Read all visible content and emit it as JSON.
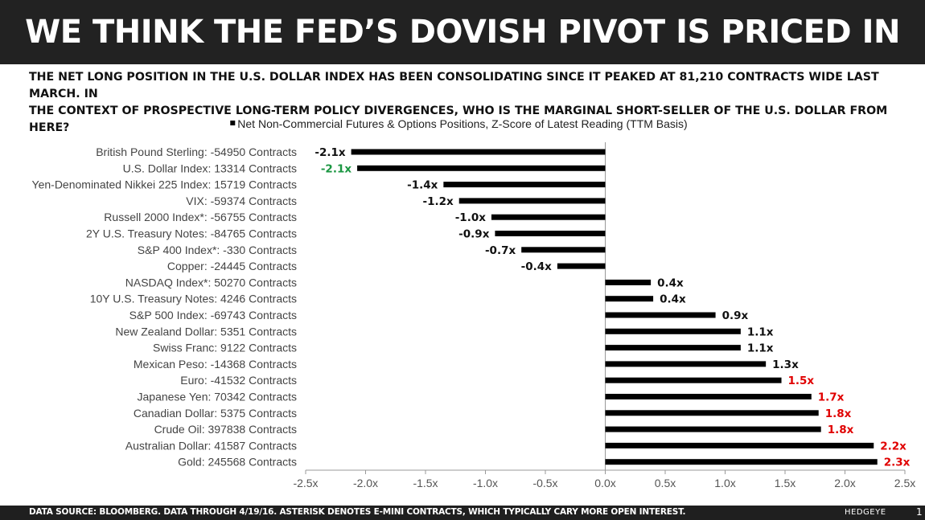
{
  "header": {
    "title": "WE THINK THE FED’S DOVISH PIVOT IS PRICED IN",
    "subtitle_line1": "THE NET LONG POSITION IN THE U.S. DOLLAR INDEX HAS BEEN CONSOLIDATING SINCE IT PEAKED AT 81,210 CONTRACTS WIDE LAST MARCH. IN",
    "subtitle_line2": "THE CONTEXT OF PROSPECTIVE LONG-TERM POLICY DIVERGENCES, WHO IS THE MARGINAL SHORT-SELLER OF THE U.S. DOLLAR FROM HERE?"
  },
  "footer": {
    "source": "DATA SOURCE: BLOOMBERG. DATA THROUGH 4/19/16. ASTERISK DENOTES E-MINI CONTRACTS, WHICH TYPICALLY CARY MORE OPEN INTEREST.",
    "brand": "HEDGEYE",
    "page": "1"
  },
  "colors": {
    "bar": "#000000",
    "label_default": "#111111",
    "label_highlight_red": "#e00000",
    "label_highlight_green": "#1a9641",
    "category_text": "#444444",
    "axis": "#999999"
  },
  "chart_data": {
    "type": "bar",
    "orientation": "horizontal",
    "legend": "Net Non-Commercial Futures & Options Positions, Z-Score of Latest Reading (TTM Basis)",
    "legend_position": "top-center",
    "categories": [
      "British Pound Sterling: -54950 Contracts",
      "U.S. Dollar Index: 13314 Contracts",
      "Yen-Denominated Nikkei 225 Index: 15719 Contracts",
      "VIX: -59374 Contracts",
      "Russell 2000 Index*: -56755 Contracts",
      "2Y U.S. Treasury Notes: -84765 Contracts",
      "S&P 400 Index*: -330 Contracts",
      "Copper: -24445 Contracts",
      "NASDAQ Index*: 50270 Contracts",
      "10Y U.S. Treasury Notes: 4246 Contracts",
      "S&P 500 Index: -69743 Contracts",
      "New Zealand Dollar: 5351 Contracts",
      "Swiss Franc: 9122 Contracts",
      "Mexican Peso: -14368 Contracts",
      "Euro: -41532 Contracts",
      "Japanese Yen: 70342 Contracts",
      "Canadian Dollar: 5375 Contracts",
      "Crude Oil: 397838 Contracts",
      "Australian Dollar: 41587 Contracts",
      "Gold: 245568 Contracts"
    ],
    "values": [
      -2.12,
      -2.07,
      -1.35,
      -1.22,
      -0.95,
      -0.92,
      -0.7,
      -0.4,
      0.38,
      0.4,
      0.92,
      1.13,
      1.13,
      1.34,
      1.47,
      1.72,
      1.78,
      1.8,
      2.24,
      2.27
    ],
    "data_labels": [
      "-2.1x",
      "-2.1x",
      "-1.4x",
      "-1.2x",
      "-1.0x",
      "-0.9x",
      "-0.7x",
      "-0.4x",
      "0.4x",
      "0.4x",
      "0.9x",
      "1.1x",
      "1.1x",
      "1.3x",
      "1.5x",
      "1.7x",
      "1.8x",
      "1.8x",
      "2.2x",
      "2.3x"
    ],
    "label_colors": [
      "default",
      "green",
      "default",
      "default",
      "default",
      "default",
      "default",
      "default",
      "default",
      "default",
      "default",
      "default",
      "default",
      "default",
      "red",
      "red",
      "red",
      "red",
      "red",
      "red"
    ],
    "xlim": [
      -2.5,
      2.5
    ],
    "xticks": [
      -2.5,
      -2.0,
      -1.5,
      -1.0,
      -0.5,
      0.0,
      0.5,
      1.0,
      1.5,
      2.0,
      2.5
    ],
    "xtick_labels": [
      "-2.5x",
      "-2.0x",
      "-1.5x",
      "-1.0x",
      "-0.5x",
      "0.0x",
      "0.5x",
      "1.0x",
      "1.5x",
      "2.0x",
      "2.5x"
    ],
    "grid": false
  }
}
